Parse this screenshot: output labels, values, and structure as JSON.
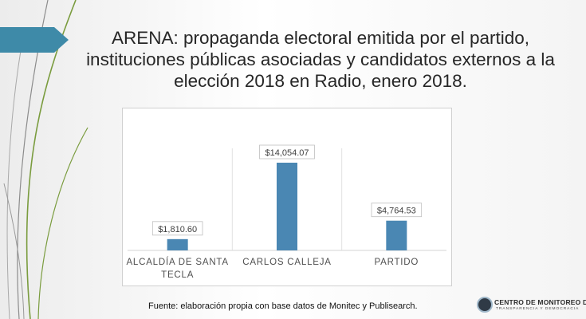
{
  "slide": {
    "title": "ARENA: propaganda electoral emitida por el partido, instituciones públicas asociadas y candidatos externos a la elección 2018 en Radio, enero 2018.",
    "source": "Fuente: elaboración propia con base datos de Monitec y Publisearch.",
    "accent_color": "#3e8aa8"
  },
  "logo": {
    "name": "CENTRO DE MONITOREO DE",
    "subtitle": "TRANSPARENCIA Y DEMOCRACIA"
  },
  "chart_data": {
    "type": "bar",
    "categories": [
      "ALCALDÍA DE SANTA TECLA",
      "CARLOS CALLEJA",
      "PARTIDO"
    ],
    "category_lines": [
      [
        "ALCALDÍA DE SANTA",
        "TECLA"
      ],
      [
        "CARLOS CALLEJA"
      ],
      [
        "PARTIDO"
      ]
    ],
    "values": [
      1810.6,
      14054.07,
      4764.53
    ],
    "data_labels": [
      "$1,810.60",
      "$14,054.07",
      "$4,764.53"
    ],
    "ylim": [
      0,
      14054.07
    ],
    "bar_color": "#4a87b3",
    "grid": false
  }
}
